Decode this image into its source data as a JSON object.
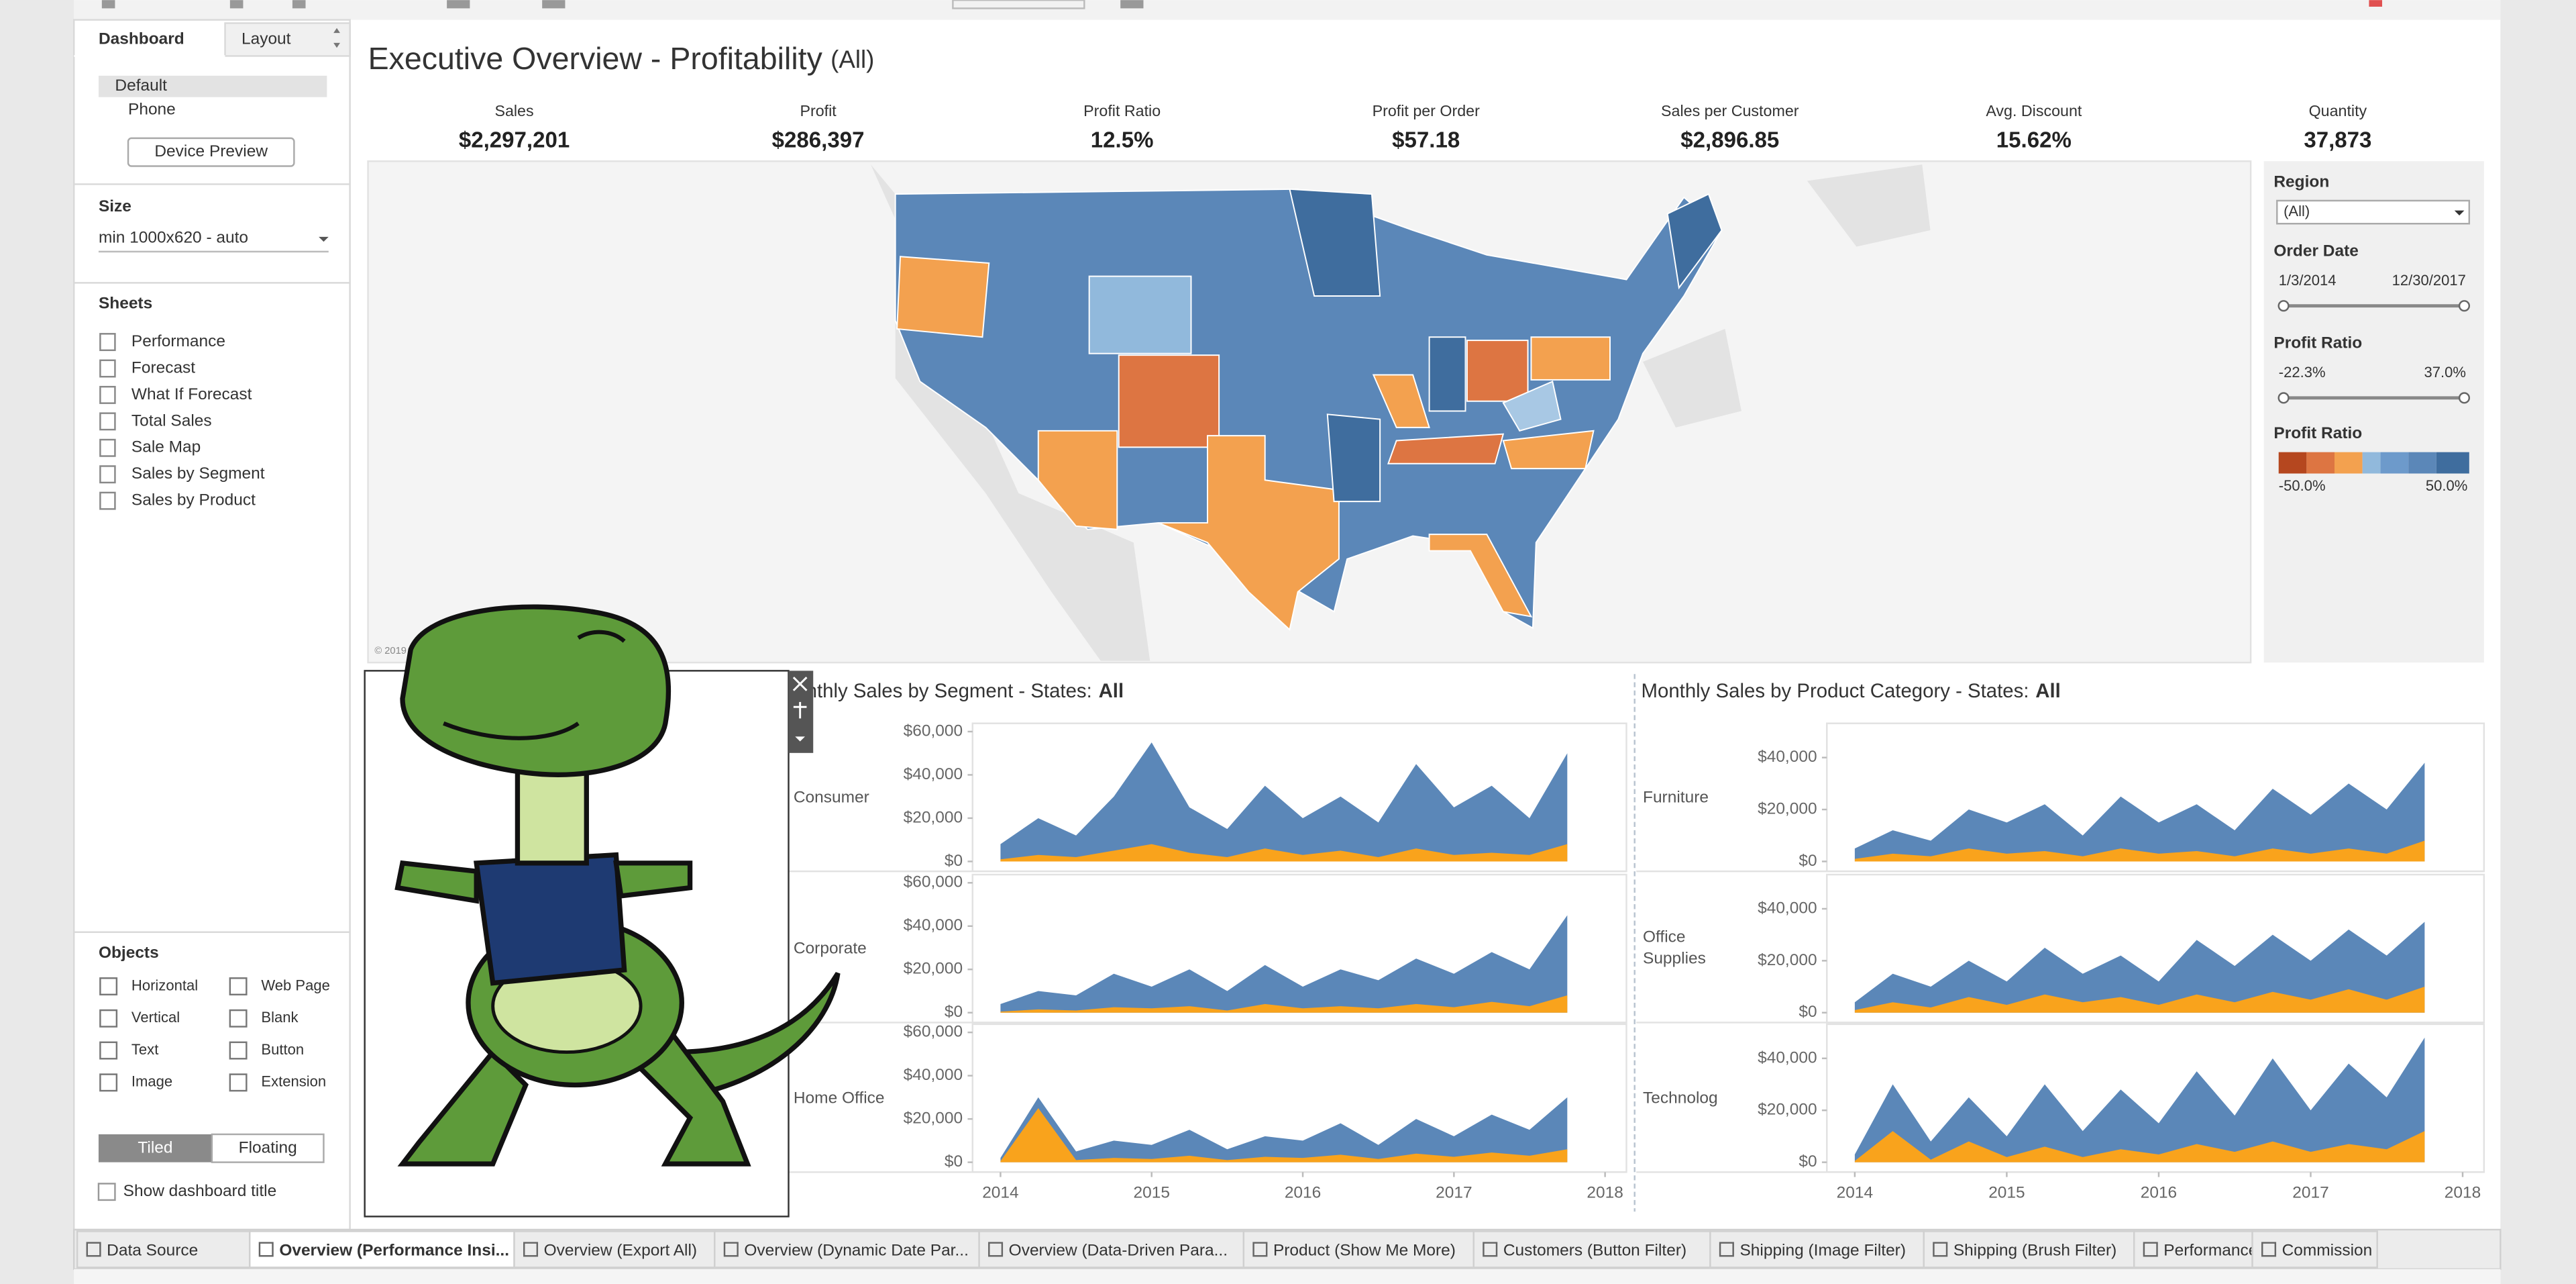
{
  "sidebar": {
    "tabs": [
      "Dashboard",
      "Layout"
    ],
    "devices": [
      "Default",
      "Phone"
    ],
    "device_preview": "Device Preview",
    "size_title": "Size",
    "size_value": "min 1000x620 - auto",
    "sheets_title": "Sheets",
    "sheets": [
      "Performance",
      "Forecast",
      "What If Forecast",
      "Total Sales",
      "Sale Map",
      "Sales by Segment",
      "Sales by Product"
    ],
    "objects_title": "Objects",
    "objects": [
      "Horizontal",
      "Web Page",
      "Vertical",
      "Blank",
      "Text",
      "Button",
      "Image",
      "Extension"
    ],
    "layout_modes": [
      "Tiled",
      "Floating"
    ],
    "show_title": "Show dashboard title"
  },
  "dashboard": {
    "title": "Executive Overview - Profitability",
    "title_filter": "(All)",
    "kpis": [
      {
        "label": "Sales",
        "value": "$2,297,201"
      },
      {
        "label": "Profit",
        "value": "$286,397"
      },
      {
        "label": "Profit Ratio",
        "value": "12.5%"
      },
      {
        "label": "Profit per Order",
        "value": "$57.18"
      },
      {
        "label": "Sales per Customer",
        "value": "$2,896.85"
      },
      {
        "label": "Avg. Discount",
        "value": "15.62%"
      },
      {
        "label": "Quantity",
        "value": "37,873"
      }
    ],
    "map_credit": "© 2019"
  },
  "filters": {
    "region_label": "Region",
    "region_value": "(All)",
    "date_label": "Order Date",
    "date_start": "1/3/2014",
    "date_end": "12/30/2017",
    "ratio_label": "Profit Ratio",
    "ratio_min": "-22.3%",
    "ratio_max": "37.0%",
    "legend_label": "Profit Ratio",
    "legend_min": "-50.0%",
    "legend_max": "50.0%"
  },
  "tabs": [
    "Data Source",
    "Overview (Performance Insi...",
    "Overview (Export All)",
    "Overview (Dynamic Date Par...",
    "Overview (Data-Driven Para...",
    "Product (Show Me More)",
    "Customers (Button Filter)",
    "Shipping (Image Filter)",
    "Shipping (Brush Filter)",
    "Performance",
    "Commission"
  ],
  "chart_data": [
    {
      "type": "area",
      "title": "Monthly Sales by Segment - States:",
      "title_emphasis": "All",
      "x": [
        2014,
        2014.25,
        2014.5,
        2014.75,
        2015,
        2015.25,
        2015.5,
        2015.75,
        2016,
        2016.25,
        2016.5,
        2016.75,
        2017,
        2017.25,
        2017.5,
        2017.75
      ],
      "xlim": [
        2014,
        2018
      ],
      "xticks": [
        2014,
        2015,
        2016,
        2017,
        2018
      ],
      "ylim": [
        0,
        60000
      ],
      "yticks": [
        {
          "value": 0,
          "label": "$0"
        },
        {
          "value": 20000,
          "label": "$20,000"
        },
        {
          "value": 40000,
          "label": "$40,000"
        },
        {
          "value": 60000,
          "label": "$60,000"
        }
      ],
      "panels": [
        {
          "name": "Consumer",
          "series": [
            {
              "color": "#5b87b8",
              "values": [
                8000,
                20000,
                12000,
                30000,
                55000,
                25000,
                15000,
                35000,
                20000,
                30000,
                18000,
                45000,
                25000,
                35000,
                20000,
                50000
              ]
            },
            {
              "color": "#f9a31c",
              "values": [
                1000,
                3000,
                2000,
                5000,
                8000,
                4000,
                2000,
                6000,
                3000,
                5000,
                2000,
                6000,
                3000,
                4000,
                3000,
                8000
              ]
            }
          ]
        },
        {
          "name": "Corporate",
          "series": [
            {
              "color": "#5b87b8",
              "values": [
                4000,
                10000,
                8000,
                18000,
                12000,
                20000,
                10000,
                22000,
                12000,
                20000,
                15000,
                25000,
                18000,
                28000,
                20000,
                45000
              ]
            },
            {
              "color": "#f9a31c",
              "values": [
                500,
                1500,
                1000,
                2500,
                2000,
                3000,
                1000,
                4000,
                2000,
                3000,
                2000,
                4000,
                2500,
                5000,
                3000,
                8000
              ]
            }
          ]
        },
        {
          "name": "Home Office",
          "series": [
            {
              "color": "#5b87b8",
              "values": [
                2000,
                30000,
                5000,
                10000,
                8000,
                15000,
                6000,
                12000,
                10000,
                18000,
                8000,
                20000,
                12000,
                22000,
                15000,
                30000
              ]
            },
            {
              "color": "#f9a31c",
              "values": [
                500,
                25000,
                1000,
                2000,
                1500,
                3000,
                1000,
                2500,
                2000,
                3500,
                1500,
                4000,
                2500,
                4500,
                3000,
                6000
              ]
            }
          ]
        }
      ]
    },
    {
      "type": "area",
      "title": "Monthly Sales by Product Category - States:",
      "title_emphasis": "All",
      "x": [
        2014,
        2014.25,
        2014.5,
        2014.75,
        2015,
        2015.25,
        2015.5,
        2015.75,
        2016,
        2016.25,
        2016.5,
        2016.75,
        2017,
        2017.25,
        2017.5,
        2017.75
      ],
      "xlim": [
        2014,
        2018
      ],
      "xticks": [
        2014,
        2015,
        2016,
        2017,
        2018
      ],
      "ylim": [
        0,
        50000
      ],
      "yticks": [
        {
          "value": 0,
          "label": "$0"
        },
        {
          "value": 20000,
          "label": "$20,000"
        },
        {
          "value": 40000,
          "label": "$40,000"
        }
      ],
      "panels": [
        {
          "name": "Furniture",
          "series": [
            {
              "color": "#5b87b8",
              "values": [
                5000,
                12000,
                8000,
                20000,
                15000,
                22000,
                10000,
                25000,
                15000,
                22000,
                12000,
                28000,
                18000,
                30000,
                20000,
                38000
              ]
            },
            {
              "color": "#f9a31c",
              "values": [
                1000,
                3000,
                2000,
                5000,
                3000,
                4000,
                2000,
                5000,
                3000,
                4000,
                2000,
                5000,
                3000,
                5000,
                3000,
                8000
              ]
            }
          ]
        },
        {
          "name": "Office Supplies",
          "series": [
            {
              "color": "#5b87b8",
              "values": [
                4000,
                15000,
                10000,
                20000,
                12000,
                25000,
                15000,
                22000,
                12000,
                28000,
                18000,
                30000,
                20000,
                32000,
                22000,
                35000
              ]
            },
            {
              "color": "#f9a31c",
              "values": [
                1000,
                4000,
                2000,
                6000,
                3000,
                7000,
                4000,
                6000,
                3000,
                7000,
                4000,
                8000,
                5000,
                9000,
                5000,
                10000
              ]
            }
          ]
        },
        {
          "name": "Technology",
          "series": [
            {
              "color": "#5b87b8",
              "values": [
                3000,
                30000,
                8000,
                25000,
                10000,
                30000,
                12000,
                28000,
                15000,
                35000,
                18000,
                40000,
                20000,
                38000,
                25000,
                48000
              ]
            },
            {
              "color": "#f9a31c",
              "values": [
                500,
                12000,
                1000,
                8000,
                2000,
                6000,
                2000,
                5000,
                3000,
                7000,
                4000,
                8000,
                4000,
                7000,
                5000,
                12000
              ]
            }
          ]
        }
      ]
    }
  ]
}
